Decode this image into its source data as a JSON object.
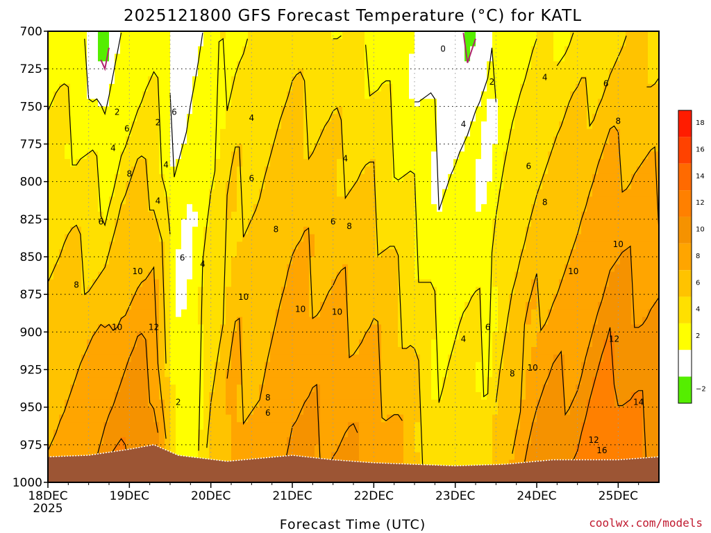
{
  "chart_data": {
    "type": "heatmap",
    "title": "2025121800 GFS Forecast Temperature (°C) for KATL",
    "xlabel": "Forecast Time (UTC)",
    "credit": "coolwx.com/models",
    "y_axis": {
      "unit": "hPa",
      "range": [
        700,
        1000
      ],
      "ticks": [
        "700",
        "725",
        "750",
        "775",
        "800",
        "825",
        "850",
        "875",
        "900",
        "925",
        "950",
        "975",
        "1000"
      ]
    },
    "x_axis": {
      "range_days": [
        0,
        7.5
      ],
      "ticks": [
        {
          "label": "18DEC",
          "sublabel": "2025",
          "day": 0
        },
        {
          "label": "19DEC",
          "day": 1
        },
        {
          "label": "20DEC",
          "day": 2
        },
        {
          "label": "21DEC",
          "day": 3
        },
        {
          "label": "22DEC",
          "day": 4
        },
        {
          "label": "23DEC",
          "day": 5
        },
        {
          "label": "24DEC",
          "day": 6
        },
        {
          "label": "25DEC",
          "day": 7
        }
      ]
    },
    "colorbar": {
      "levels": [
        {
          "label": "18",
          "color": "#ff1c00",
          "lo": 18
        },
        {
          "label": "16",
          "color": "#ff4200",
          "lo": 16
        },
        {
          "label": "14",
          "color": "#ff6a00",
          "lo": 14
        },
        {
          "label": "12",
          "color": "#ff8000",
          "lo": 12
        },
        {
          "label": "10",
          "color": "#f59200",
          "lo": 10
        },
        {
          "label": "8",
          "color": "#ffa500",
          "lo": 8
        },
        {
          "label": "6",
          "color": "#ffc300",
          "lo": 6
        },
        {
          "label": "4",
          "color": "#ffe000",
          "lo": 4
        },
        {
          "label": "2",
          "color": "#ffff00",
          "lo": 2
        },
        {
          "label": "",
          "color": "#ffffff",
          "lo": 0
        },
        {
          "label": "−2",
          "color": "#55ee00",
          "lo": -2
        }
      ]
    },
    "profiles": [
      {
        "day": 0.0,
        "t700": 3.0,
        "t1000": 9.0
      },
      {
        "day": 0.3,
        "t700": 2.5,
        "t1000": 9.5
      },
      {
        "day": 0.6,
        "t700": 0.5,
        "t1000": 11.0
      },
      {
        "day": 0.7,
        "t700": -1.0,
        "t1000": 12.0
      },
      {
        "day": 0.9,
        "t700": 1.5,
        "t1000": 12.5
      },
      {
        "day": 1.1,
        "t700": 2.5,
        "t1000": 13.0
      },
      {
        "day": 1.3,
        "t700": 3.0,
        "t1000": 12.0
      },
      {
        "day": 1.45,
        "t700": 2.0,
        "t1000": 8.0
      },
      {
        "day": 1.55,
        "t700": 1.0,
        "t1000": 3.5
      },
      {
        "day": 1.7,
        "t700": 1.5,
        "t1000": 2.5
      },
      {
        "day": 1.85,
        "t700": 2.0,
        "t1000": 4.0
      },
      {
        "day": 2.0,
        "t700": 3.0,
        "t1000": 6.5
      },
      {
        "day": 2.3,
        "t700": 4.0,
        "t1000": 9.5
      },
      {
        "day": 2.6,
        "t700": 4.5,
        "t1000": 8.5
      },
      {
        "day": 3.0,
        "t700": 5.0,
        "t1000": 11.0
      },
      {
        "day": 3.5,
        "t700": 4.5,
        "t1000": 10.5
      },
      {
        "day": 4.0,
        "t700": 3.5,
        "t1000": 10.0
      },
      {
        "day": 4.4,
        "t700": 2.0,
        "t1000": 8.0
      },
      {
        "day": 4.8,
        "t700": 0.5,
        "t1000": 5.0
      },
      {
        "day": 5.1,
        "t700": 0.0,
        "t1000": 6.5
      },
      {
        "day": 5.4,
        "t700": 1.0,
        "t1000": 5.0
      },
      {
        "day": 5.7,
        "t700": 2.5,
        "t1000": 9.0
      },
      {
        "day": 6.0,
        "t700": 3.5,
        "t1000": 11.0
      },
      {
        "day": 6.5,
        "t700": 4.5,
        "t1000": 12.0
      },
      {
        "day": 6.9,
        "t700": 5.5,
        "t1000": 14.5
      },
      {
        "day": 7.2,
        "t700": 6.0,
        "t1000": 13.0
      },
      {
        "day": 7.5,
        "t700": 5.5,
        "t1000": 12.5
      }
    ],
    "terrain_surface_hPa": [
      {
        "day": 0.0,
        "p": 983
      },
      {
        "day": 0.5,
        "p": 982
      },
      {
        "day": 1.0,
        "p": 978
      },
      {
        "day": 1.3,
        "p": 975
      },
      {
        "day": 1.6,
        "p": 982
      },
      {
        "day": 2.2,
        "p": 986
      },
      {
        "day": 3.0,
        "p": 982
      },
      {
        "day": 3.5,
        "p": 985
      },
      {
        "day": 4.0,
        "p": 987
      },
      {
        "day": 4.5,
        "p": 988
      },
      {
        "day": 5.0,
        "p": 989
      },
      {
        "day": 5.6,
        "p": 988
      },
      {
        "day": 6.2,
        "p": 985
      },
      {
        "day": 7.0,
        "p": 985
      },
      {
        "day": 7.5,
        "p": 983
      }
    ],
    "contour_labels": [
      {
        "text": "0",
        "day": 4.85,
        "p": 712
      },
      {
        "text": "2",
        "day": 0.85,
        "p": 754
      },
      {
        "text": "2",
        "day": 1.35,
        "p": 761
      },
      {
        "text": "2",
        "day": 1.6,
        "p": 947
      },
      {
        "text": "2",
        "day": 5.45,
        "p": 734
      },
      {
        "text": "4",
        "day": 0.8,
        "p": 778
      },
      {
        "text": "4",
        "day": 1.45,
        "p": 789
      },
      {
        "text": "4",
        "day": 1.35,
        "p": 813
      },
      {
        "text": "4",
        "day": 1.9,
        "p": 855
      },
      {
        "text": "4",
        "day": 2.5,
        "p": 758
      },
      {
        "text": "4",
        "day": 3.65,
        "p": 785
      },
      {
        "text": "4",
        "day": 5.1,
        "p": 762
      },
      {
        "text": "4",
        "day": 6.1,
        "p": 731
      },
      {
        "text": "4",
        "day": 5.1,
        "p": 905
      },
      {
        "text": "6",
        "day": 0.97,
        "p": 765
      },
      {
        "text": "6",
        "day": 1.55,
        "p": 754
      },
      {
        "text": "6",
        "day": 1.65,
        "p": 851
      },
      {
        "text": "6",
        "day": 0.65,
        "p": 827
      },
      {
        "text": "6",
        "day": 2.5,
        "p": 798
      },
      {
        "text": "6",
        "day": 3.5,
        "p": 827
      },
      {
        "text": "6",
        "day": 2.7,
        "p": 954
      },
      {
        "text": "6",
        "day": 5.4,
        "p": 897
      },
      {
        "text": "6",
        "day": 5.9,
        "p": 790
      },
      {
        "text": "6",
        "day": 6.85,
        "p": 735
      },
      {
        "text": "8",
        "day": 1.0,
        "p": 795
      },
      {
        "text": "8",
        "day": 0.35,
        "p": 869
      },
      {
        "text": "8",
        "day": 2.8,
        "p": 832
      },
      {
        "text": "8",
        "day": 3.7,
        "p": 830
      },
      {
        "text": "8",
        "day": 2.7,
        "p": 944
      },
      {
        "text": "8",
        "day": 5.7,
        "p": 928
      },
      {
        "text": "8",
        "day": 6.1,
        "p": 814
      },
      {
        "text": "8",
        "day": 7.0,
        "p": 760
      },
      {
        "text": "10",
        "day": 1.1,
        "p": 860
      },
      {
        "text": "10",
        "day": 0.85,
        "p": 897
      },
      {
        "text": "10",
        "day": 2.4,
        "p": 877
      },
      {
        "text": "10",
        "day": 3.1,
        "p": 885
      },
      {
        "text": "10",
        "day": 3.55,
        "p": 887
      },
      {
        "text": "10",
        "day": 5.95,
        "p": 924
      },
      {
        "text": "10",
        "day": 6.45,
        "p": 860
      },
      {
        "text": "10",
        "day": 7.0,
        "p": 842
      },
      {
        "text": "12",
        "day": 1.3,
        "p": 897
      },
      {
        "text": "12",
        "day": 6.95,
        "p": 905
      },
      {
        "text": "12",
        "day": 6.7,
        "p": 972
      },
      {
        "text": "14",
        "day": 7.25,
        "p": 947
      },
      {
        "text": "16",
        "day": 6.8,
        "p": 979
      }
    ]
  }
}
